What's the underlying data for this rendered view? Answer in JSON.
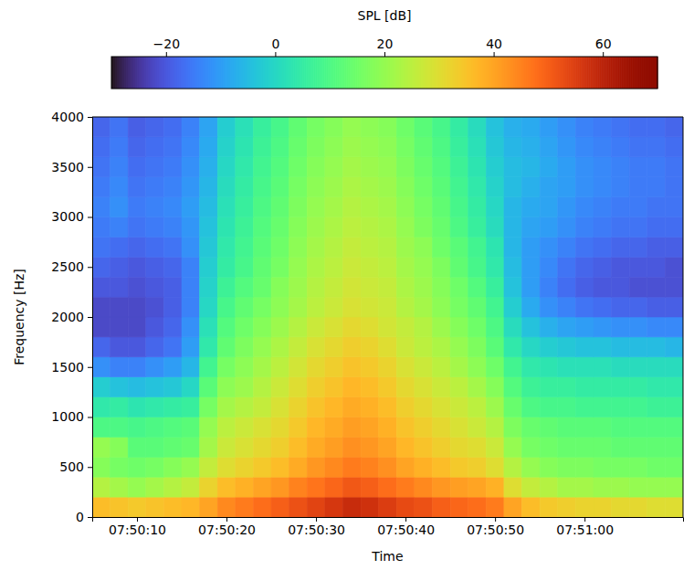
{
  "chart_data": {
    "type": "heatmap",
    "x_label": "Time",
    "y_label": "Frequency [Hz]",
    "colorbar_label": "SPL [dB]",
    "xlim": [
      "07:50:05",
      "07:51:11"
    ],
    "ylim": [
      0,
      4000
    ],
    "xticks": [
      "07:50:10",
      "07:50:20",
      "07:50:30",
      "07:50:40",
      "07:50:50",
      "07:51:00"
    ],
    "yticks": [
      0,
      500,
      1000,
      1500,
      2000,
      2500,
      3000,
      3500,
      4000
    ],
    "clim": [
      -30,
      70
    ],
    "cticks": [
      {
        "value": -20,
        "label": "−20"
      },
      0,
      20,
      40,
      60
    ],
    "x_edges": [
      "07:50:05",
      "07:50:07",
      "07:50:09",
      "07:50:11",
      "07:50:13",
      "07:50:15",
      "07:50:17",
      "07:50:19",
      "07:50:21",
      "07:50:23",
      "07:50:25",
      "07:50:27",
      "07:50:29",
      "07:50:31",
      "07:50:33",
      "07:50:35",
      "07:50:37",
      "07:50:39",
      "07:50:41",
      "07:50:43",
      "07:50:45",
      "07:50:47",
      "07:50:49",
      "07:50:51",
      "07:50:53",
      "07:50:55",
      "07:50:57",
      "07:50:59",
      "07:51:01",
      "07:51:03",
      "07:51:05",
      "07:51:07",
      "07:51:09",
      "07:51:11"
    ],
    "y_edges": [
      0,
      200,
      400,
      600,
      800,
      1000,
      1200,
      1400,
      1600,
      1800,
      2000,
      2200,
      2400,
      2600,
      2800,
      3000,
      3200,
      3400,
      3600,
      3800,
      4000
    ],
    "z": [
      [
        36,
        35,
        34,
        35,
        36,
        37,
        40,
        44,
        46,
        48,
        50,
        52,
        54,
        56,
        58,
        57,
        55,
        53,
        52,
        50,
        49,
        48,
        46,
        40,
        36,
        34,
        33,
        32,
        32,
        31,
        31,
        30,
        30
      ],
      [
        24,
        22,
        20,
        22,
        24,
        26,
        32,
        36,
        38,
        40,
        42,
        45,
        47,
        49,
        51,
        50,
        48,
        46,
        44,
        42,
        41,
        40,
        38,
        30,
        26,
        24,
        22,
        22,
        21,
        21,
        20,
        20,
        20
      ],
      [
        18,
        16,
        15,
        16,
        18,
        20,
        26,
        30,
        32,
        34,
        36,
        39,
        42,
        44,
        46,
        45,
        43,
        40,
        38,
        36,
        34,
        33,
        30,
        24,
        20,
        18,
        17,
        17,
        16,
        16,
        16,
        15,
        15
      ],
      [
        20,
        18,
        12,
        12,
        13,
        14,
        22,
        27,
        29,
        31,
        33,
        36,
        39,
        41,
        43,
        42,
        40,
        37,
        35,
        33,
        31,
        30,
        27,
        20,
        16,
        15,
        14,
        14,
        14,
        13,
        13,
        13,
        13
      ],
      [
        10,
        10,
        9,
        10,
        11,
        12,
        20,
        25,
        27,
        29,
        31,
        34,
        37,
        39,
        41,
        40,
        38,
        35,
        33,
        31,
        29,
        27,
        24,
        17,
        14,
        13,
        12,
        12,
        12,
        11,
        11,
        11,
        11
      ],
      [
        4,
        5,
        3,
        4,
        5,
        6,
        16,
        22,
        24,
        26,
        29,
        32,
        35,
        37,
        39,
        38,
        36,
        33,
        31,
        29,
        27,
        25,
        21,
        14,
        10,
        9,
        9,
        8,
        8,
        8,
        8,
        7,
        7
      ],
      [
        -2,
        -4,
        -5,
        -4,
        -3,
        0,
        12,
        19,
        21,
        24,
        27,
        30,
        33,
        35,
        37,
        36,
        34,
        31,
        29,
        27,
        25,
        22,
        18,
        11,
        7,
        6,
        6,
        5,
        5,
        5,
        5,
        4,
        4
      ],
      [
        -12,
        -14,
        -14,
        -12,
        -10,
        -6,
        8,
        16,
        19,
        22,
        25,
        28,
        31,
        33,
        35,
        34,
        32,
        29,
        27,
        25,
        22,
        19,
        15,
        8,
        4,
        3,
        2,
        2,
        2,
        1,
        1,
        1,
        1
      ],
      [
        -18,
        -20,
        -20,
        -18,
        -16,
        -10,
        4,
        13,
        17,
        20,
        23,
        26,
        29,
        31,
        33,
        32,
        30,
        27,
        25,
        23,
        20,
        17,
        12,
        4,
        0,
        -2,
        -3,
        -4,
        -4,
        -5,
        -5,
        -5,
        -6
      ],
      [
        -22,
        -22,
        -22,
        -20,
        -18,
        -12,
        2,
        11,
        15,
        18,
        21,
        24,
        27,
        29,
        31,
        30,
        28,
        26,
        24,
        21,
        18,
        15,
        10,
        1,
        -4,
        -7,
        -9,
        -10,
        -11,
        -12,
        -12,
        -13,
        -13
      ],
      [
        -22,
        -22,
        -22,
        -21,
        -19,
        -14,
        0,
        9,
        13,
        16,
        19,
        22,
        25,
        27,
        29,
        28,
        27,
        24,
        22,
        19,
        16,
        13,
        8,
        -2,
        -8,
        -12,
        -14,
        -16,
        -17,
        -18,
        -18,
        -19,
        -19
      ],
      [
        -20,
        -20,
        -21,
        -20,
        -19,
        -14,
        -1,
        7,
        11,
        14,
        18,
        21,
        24,
        26,
        28,
        27,
        26,
        23,
        21,
        18,
        15,
        11,
        6,
        -4,
        -10,
        -14,
        -17,
        -19,
        -20,
        -20,
        -21,
        -21,
        -21
      ],
      [
        -18,
        -19,
        -20,
        -19,
        -18,
        -14,
        -2,
        5,
        9,
        13,
        16,
        20,
        23,
        25,
        27,
        26,
        25,
        22,
        20,
        17,
        13,
        9,
        4,
        -5,
        -10,
        -13,
        -16,
        -18,
        -19,
        -20,
        -20,
        -20,
        -21
      ],
      [
        -16,
        -17,
        -18,
        -17,
        -16,
        -12,
        -3,
        4,
        8,
        12,
        15,
        19,
        22,
        24,
        26,
        25,
        24,
        21,
        19,
        15,
        12,
        8,
        3,
        -6,
        -10,
        -12,
        -14,
        -16,
        -17,
        -18,
        -18,
        -19,
        -19
      ],
      [
        -15,
        -14,
        -16,
        -15,
        -14,
        -11,
        -4,
        3,
        7,
        11,
        14,
        18,
        21,
        23,
        25,
        24,
        23,
        20,
        17,
        14,
        10,
        6,
        1,
        -6,
        -9,
        -10,
        -12,
        -14,
        -15,
        -16,
        -16,
        -17,
        -17
      ],
      [
        -14,
        -12,
        -15,
        -14,
        -13,
        -10,
        -5,
        2,
        6,
        10,
        13,
        17,
        20,
        22,
        24,
        23,
        22,
        19,
        16,
        13,
        9,
        5,
        0,
        -6,
        -8,
        -9,
        -11,
        -13,
        -14,
        -15,
        -15,
        -16,
        -16
      ],
      [
        -15,
        -13,
        -16,
        -15,
        -14,
        -11,
        -6,
        1,
        5,
        9,
        12,
        16,
        19,
        21,
        23,
        22,
        21,
        18,
        15,
        12,
        8,
        4,
        -1,
        -5,
        -7,
        -9,
        -10,
        -12,
        -13,
        -14,
        -15,
        -15,
        -16
      ],
      [
        -16,
        -14,
        -17,
        -16,
        -15,
        -12,
        -7,
        0,
        4,
        8,
        11,
        15,
        18,
        20,
        22,
        21,
        20,
        17,
        14,
        11,
        7,
        3,
        -2,
        -5,
        -6,
        -8,
        -10,
        -12,
        -13,
        -14,
        -15,
        -15,
        -16
      ],
      [
        -17,
        -15,
        -18,
        -17,
        -16,
        -13,
        -8,
        -1,
        3,
        7,
        10,
        14,
        17,
        19,
        21,
        20,
        19,
        16,
        13,
        10,
        6,
        2,
        -3,
        -6,
        -7,
        -9,
        -11,
        -13,
        -14,
        -15,
        -16,
        -16,
        -17
      ],
      [
        -18,
        -16,
        -19,
        -18,
        -17,
        -14,
        -9,
        -2,
        2,
        6,
        9,
        13,
        16,
        18,
        20,
        19,
        18,
        15,
        12,
        9,
        5,
        1,
        -4,
        -7,
        -8,
        -10,
        -12,
        -14,
        -15,
        -16,
        -17,
        -17,
        -18
      ]
    ]
  }
}
